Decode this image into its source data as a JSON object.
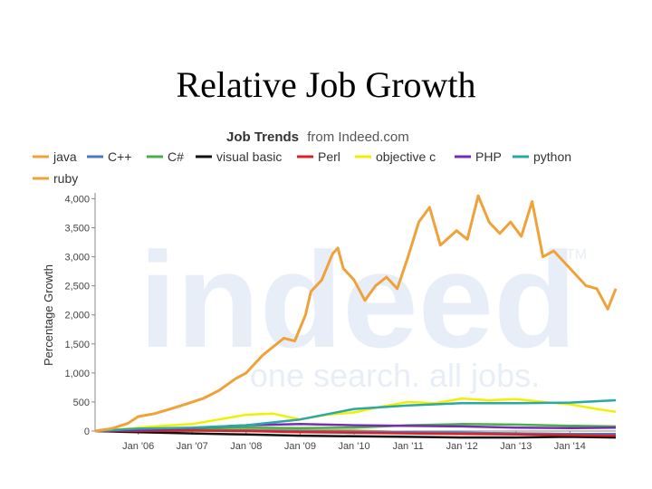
{
  "slide": {
    "title": "Relative Job Growth"
  },
  "chart_data": {
    "type": "line",
    "title_bold": "Job Trends",
    "title_rest": "from Indeed.com",
    "ylabel": "Percentage Growth",
    "xlabel": "",
    "ylim": [
      0,
      4100
    ],
    "yticks": [
      "0",
      "500",
      "1,000",
      "1,500",
      "2,000",
      "2,500",
      "3,000",
      "3,500",
      "4,000"
    ],
    "ytick_values": [
      0,
      500,
      1000,
      1500,
      2000,
      2500,
      3000,
      3500,
      4000
    ],
    "xlim": [
      2005.2,
      2014.85
    ],
    "xticks": [
      "Jan '06",
      "Jan '07",
      "Jan '08",
      "Jan '09",
      "Jan '10",
      "Jan '11",
      "Jan '12",
      "Jan '13",
      "Jan '14"
    ],
    "xtick_values": [
      2006,
      2007,
      2008,
      2009,
      2010,
      2011,
      2012,
      2013,
      2014
    ],
    "watermark": {
      "logo": "indeed",
      "tagline": "one search. all jobs.",
      "tm": "TM"
    },
    "legend_position": "top",
    "series": [
      {
        "name": "java",
        "color": "#f0a23a",
        "x": [
          2005.2,
          2006,
          2007,
          2008,
          2009,
          2010,
          2011,
          2012,
          2013,
          2014,
          2014.85
        ],
        "y": [
          0,
          5,
          10,
          15,
          20,
          10,
          -20,
          -30,
          -40,
          -50,
          -60
        ]
      },
      {
        "name": "C++",
        "color": "#4a78c8",
        "x": [
          2005.2,
          2006,
          2007,
          2008,
          2009,
          2010,
          2011,
          2012,
          2013,
          2014,
          2014.85
        ],
        "y": [
          0,
          5,
          8,
          10,
          0,
          -10,
          -20,
          -30,
          -40,
          -50,
          -50
        ]
      },
      {
        "name": "C#",
        "color": "#48b048",
        "x": [
          2005.2,
          2006,
          2007,
          2008,
          2009,
          2010,
          2011,
          2012,
          2013,
          2014,
          2014.85
        ],
        "y": [
          0,
          20,
          40,
          60,
          50,
          60,
          100,
          120,
          110,
          90,
          80
        ]
      },
      {
        "name": "visual basic",
        "color": "#111111",
        "x": [
          2005.2,
          2006,
          2007,
          2008,
          2009,
          2010,
          2011,
          2012,
          2013,
          2014,
          2014.85
        ],
        "y": [
          0,
          -20,
          -40,
          -60,
          -80,
          -90,
          -100,
          -110,
          -110,
          -100,
          -110
        ]
      },
      {
        "name": "Perl",
        "color": "#e02020",
        "x": [
          2005.2,
          2006,
          2007,
          2008,
          2009,
          2010,
          2011,
          2012,
          2013,
          2014,
          2014.85
        ],
        "y": [
          0,
          5,
          10,
          0,
          -20,
          -30,
          -40,
          -50,
          -60,
          -70,
          -80
        ]
      },
      {
        "name": "objective c",
        "color": "#f0f000",
        "x": [
          2005.2,
          2005.8,
          2006.3,
          2007,
          2007.5,
          2008,
          2008.5,
          2009,
          2009.5,
          2010,
          2010.5,
          2011,
          2011.5,
          2012,
          2012.5,
          2013,
          2013.5,
          2014,
          2014.5,
          2014.85
        ],
        "y": [
          0,
          40,
          80,
          120,
          200,
          280,
          300,
          200,
          280,
          320,
          420,
          500,
          480,
          560,
          530,
          550,
          500,
          460,
          380,
          330
        ]
      },
      {
        "name": "PHP",
        "color": "#7a2ab0",
        "x": [
          2005.2,
          2006,
          2007,
          2008,
          2009,
          2010,
          2011,
          2012,
          2013,
          2014,
          2014.85
        ],
        "y": [
          0,
          20,
          50,
          100,
          120,
          100,
          90,
          80,
          60,
          50,
          60
        ]
      },
      {
        "name": "python",
        "color": "#2aa8a8",
        "x": [
          2005.2,
          2006,
          2007,
          2008,
          2009,
          2010,
          2011,
          2012,
          2013,
          2014,
          2014.85
        ],
        "y": [
          0,
          40,
          60,
          100,
          200,
          380,
          440,
          480,
          480,
          490,
          530
        ]
      },
      {
        "name": "ruby",
        "color": "#f0a23a",
        "x": [
          2005.2,
          2005.5,
          2005.8,
          2006,
          2006.3,
          2006.6,
          2006.9,
          2007.2,
          2007.5,
          2007.8,
          2008,
          2008.3,
          2008.5,
          2008.7,
          2008.9,
          2009.1,
          2009.2,
          2009.4,
          2009.6,
          2009.7,
          2009.8,
          2010.0,
          2010.2,
          2010.4,
          2010.6,
          2010.8,
          2011.0,
          2011.2,
          2011.4,
          2011.6,
          2011.9,
          2012.1,
          2012.3,
          2012.5,
          2012.7,
          2012.9,
          2013.1,
          2013.3,
          2013.5,
          2013.7,
          2014.0,
          2014.3,
          2014.5,
          2014.7,
          2014.85
        ],
        "y": [
          0,
          40,
          130,
          250,
          300,
          380,
          470,
          560,
          700,
          900,
          1000,
          1300,
          1450,
          1600,
          1550,
          2000,
          2400,
          2600,
          3050,
          3150,
          2800,
          2600,
          2250,
          2500,
          2650,
          2450,
          3000,
          3600,
          3850,
          3200,
          3450,
          3300,
          4050,
          3600,
          3400,
          3600,
          3350,
          3950,
          3000,
          3100,
          2800,
          2500,
          2450,
          2100,
          2450
        ]
      }
    ]
  }
}
